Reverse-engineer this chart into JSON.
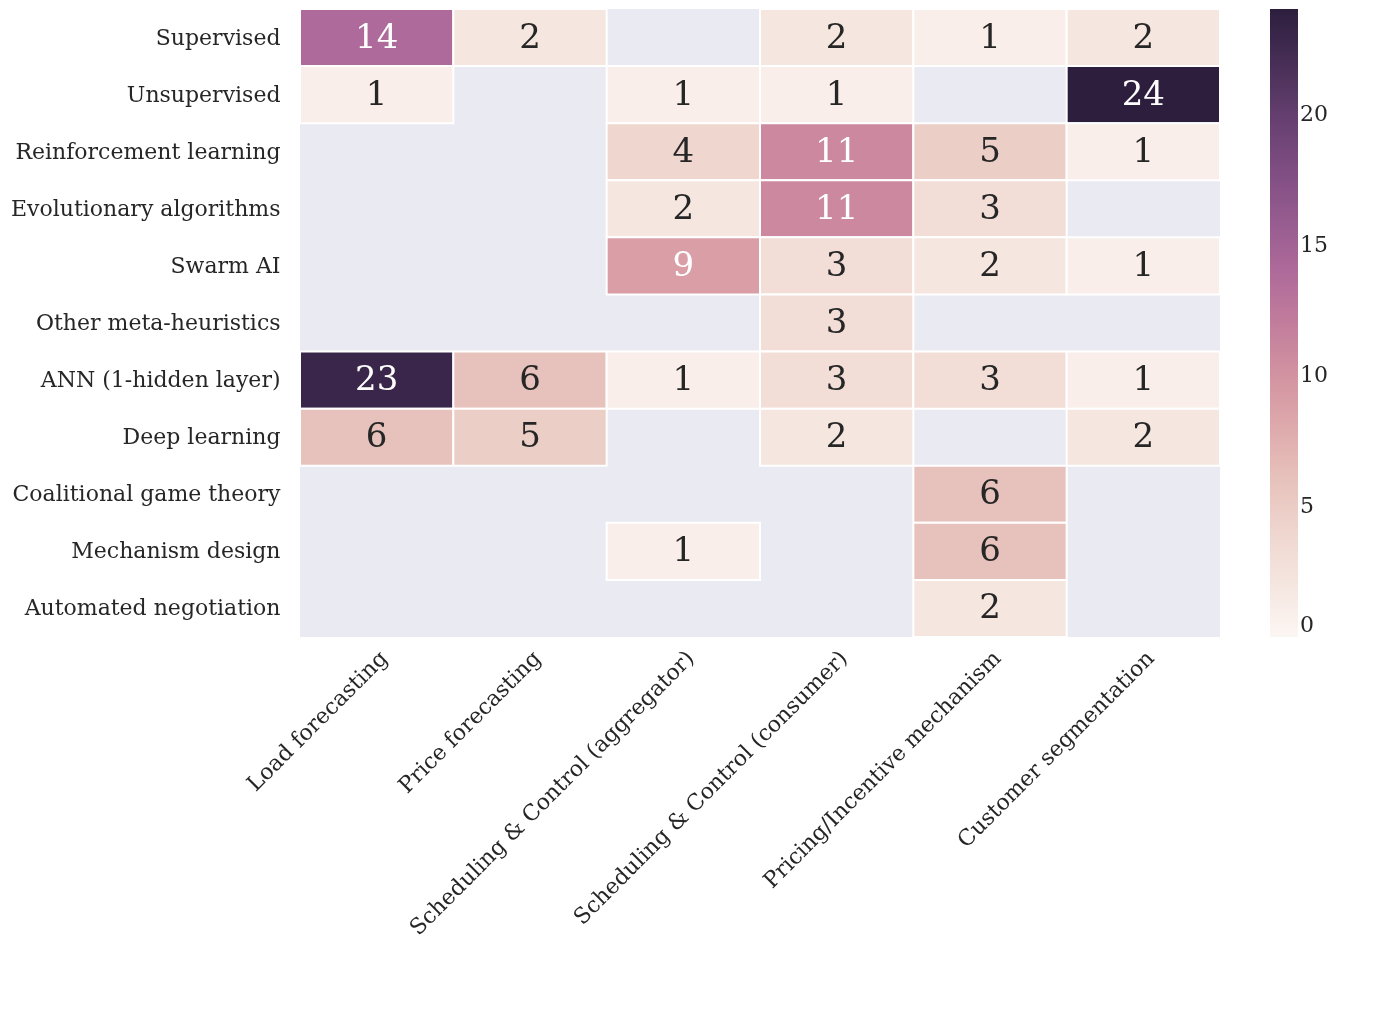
{
  "chart_data": {
    "type": "heatmap",
    "categories": [
      "Load forecasting",
      "Price forecasting",
      "Scheduling & Control (aggregator)",
      "Scheduling & Control (consumer)",
      "Pricing/Incentive mechanism",
      "Customer segmentation"
    ],
    "y_categories": [
      "Supervised",
      "Unsupervised",
      "Reinforcement learning",
      "Evolutionary algorithms",
      "Swarm AI",
      "Other meta-heuristics",
      "ANN (1-hidden layer)",
      "Deep learning",
      "Coalitional game theory",
      "Mechanism design",
      "Automated negotiation"
    ],
    "cells": [
      [
        14,
        2,
        null,
        2,
        1,
        2
      ],
      [
        1,
        null,
        1,
        1,
        null,
        24
      ],
      [
        null,
        null,
        4,
        11,
        5,
        1
      ],
      [
        null,
        null,
        2,
        11,
        3,
        null
      ],
      [
        null,
        null,
        9,
        3,
        2,
        1
      ],
      [
        null,
        null,
        null,
        3,
        null,
        null
      ],
      [
        23,
        6,
        1,
        3,
        3,
        1
      ],
      [
        6,
        5,
        null,
        2,
        null,
        2
      ],
      [
        null,
        null,
        null,
        null,
        6,
        null
      ],
      [
        null,
        null,
        1,
        null,
        6,
        null
      ],
      [
        null,
        null,
        null,
        null,
        2,
        null
      ]
    ],
    "clim": [
      0,
      24
    ],
    "cticks": [
      0,
      5,
      10,
      15,
      20
    ],
    "data_labels": true
  }
}
